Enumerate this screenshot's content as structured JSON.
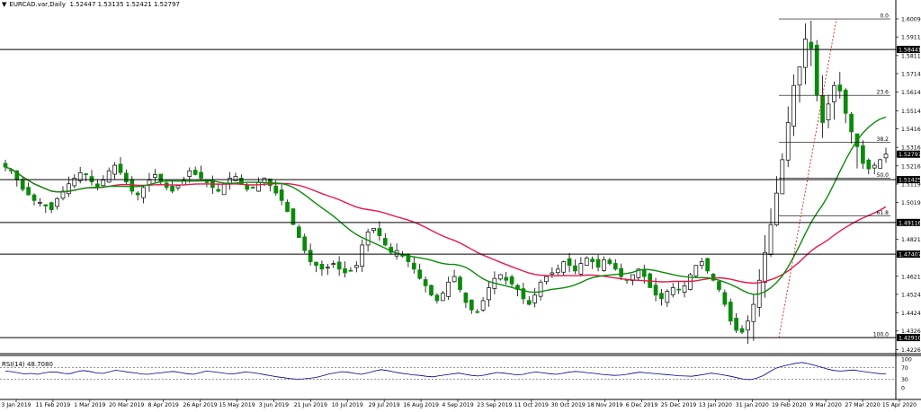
{
  "header": {
    "arrow_icon": "triangle-down-icon",
    "symbol": "EURCAD.var,Daily",
    "ohlc": "1.52447 1.53135 1.52421 1.52797"
  },
  "rsi": {
    "label": "RSI(14) 48.7080",
    "levels": [
      "100",
      "70",
      "30",
      "0"
    ],
    "values": [
      58,
      56,
      52,
      48,
      50,
      47,
      52,
      55,
      54,
      50,
      49,
      56,
      60,
      57,
      52,
      50,
      55,
      61,
      58,
      54,
      52,
      48,
      47,
      50,
      52,
      55,
      57,
      53,
      49,
      47,
      52,
      58,
      56,
      53,
      50,
      48,
      51,
      55,
      53,
      50,
      46,
      42,
      38,
      35,
      32,
      30,
      31,
      33,
      36,
      42,
      48,
      52,
      56,
      54,
      50,
      47,
      52,
      58,
      63,
      60,
      55,
      51,
      48,
      45,
      43,
      40,
      38,
      42,
      45,
      48,
      51,
      47,
      43,
      41,
      44,
      49,
      53,
      51,
      48,
      45,
      47,
      52,
      55,
      52,
      49,
      47,
      50,
      54,
      57,
      55,
      52,
      50,
      47,
      45,
      43,
      44,
      47,
      51,
      54,
      52,
      50,
      48,
      46,
      44,
      42,
      41,
      40,
      43,
      47,
      51,
      48,
      44,
      40,
      35,
      30,
      28,
      33,
      42,
      55,
      68,
      75,
      80,
      85,
      88,
      84,
      78,
      72,
      65,
      60,
      58,
      60,
      62,
      58,
      55,
      52,
      49,
      48.7
    ],
    "colors": {
      "line": "#00008b",
      "level_line": "#555555"
    }
  },
  "chart_data": [
    {
      "type": "candlestick",
      "symbol": "EURCAD.var",
      "timeframe": "Daily",
      "ohlc_last": {
        "open": 1.52447,
        "high": 1.53135,
        "low": 1.52421,
        "close": 1.52797
      },
      "y_ticks": [
        "1.60090",
        "1.59115",
        "1.58115",
        "1.57140",
        "1.56140",
        "1.55140",
        "1.54165",
        "1.53165",
        "1.52165",
        "1.51190",
        "1.50190",
        "1.48215",
        "1.46215",
        "1.45240",
        "1.44240",
        "1.43265",
        "1.42265"
      ],
      "y_tick_values": [
        1.6009,
        1.59115,
        1.58115,
        1.5714,
        1.5614,
        1.5514,
        1.54165,
        1.53165,
        1.52165,
        1.5119,
        1.5019,
        1.48215,
        1.46215,
        1.4524,
        1.4424,
        1.43265,
        1.42265
      ],
      "ylim": [
        1.4214,
        1.6072
      ],
      "price_marks": [
        {
          "label": "1.58441",
          "value": 1.58441
        },
        {
          "label": "1.52797",
          "value": 1.52797,
          "style": "current"
        },
        {
          "label": "1.51425",
          "value": 1.51425
        },
        {
          "label": "1.49116",
          "value": 1.49116
        },
        {
          "label": "1.47407",
          "value": 1.47407
        },
        {
          "label": "1.42910",
          "value": 1.4291
        }
      ],
      "fib_levels": [
        {
          "label": "0.0",
          "value": 1.6009
        },
        {
          "label": "23.6",
          "value": 1.5597
        },
        {
          "label": "38.2",
          "value": 1.5343
        },
        {
          "label": "50.0",
          "value": 1.515
        },
        {
          "label": "61.8",
          "value": 1.4946
        },
        {
          "label": "100.0",
          "value": 1.4291
        }
      ],
      "x_ticks": [
        "3 Jan 2019",
        "11 Feb 2019",
        "1 Mar 2019",
        "20 Mar 2019",
        "8 Apr 2019",
        "26 Apr 2019",
        "15 May 2019",
        "3 Jun 2019",
        "21 Jun 2019",
        "10 Jul 2019",
        "29 Jul 2019",
        "16 Aug 2019",
        "4 Sep 2019",
        "23 Sep 2019",
        "11 Oct 2019",
        "30 Oct 2019",
        "18 Nov 2019",
        "6 Dec 2019",
        "25 Dec 2019",
        "13 Jan 2020",
        "31 Jan 2020",
        "19 Feb 2020",
        "9 Mar 2020",
        "27 Mar 2020",
        "15 Apr 2020"
      ],
      "close_path": [
        1.521,
        1.519,
        1.514,
        1.509,
        1.506,
        1.503,
        1.502,
        1.5,
        1.498,
        1.504,
        1.508,
        1.512,
        1.515,
        1.518,
        1.517,
        1.513,
        1.51,
        1.514,
        1.519,
        1.522,
        1.518,
        1.513,
        1.508,
        1.506,
        1.51,
        1.514,
        1.517,
        1.513,
        1.51,
        1.508,
        1.511,
        1.514,
        1.519,
        1.517,
        1.515,
        1.513,
        1.51,
        1.508,
        1.512,
        1.515,
        1.516,
        1.512,
        1.509,
        1.51,
        1.513,
        1.515,
        1.511,
        1.507,
        1.503,
        1.497,
        1.49,
        1.483,
        1.476,
        1.47,
        1.468,
        1.466,
        1.467,
        1.469,
        1.466,
        1.464,
        1.465,
        1.468,
        1.479,
        1.486,
        1.488,
        1.484,
        1.479,
        1.475,
        1.476,
        1.473,
        1.47,
        1.466,
        1.461,
        1.457,
        1.452,
        1.449,
        1.453,
        1.459,
        1.462,
        1.455,
        1.448,
        1.444,
        1.443,
        1.449,
        1.456,
        1.461,
        1.463,
        1.46,
        1.458,
        1.455,
        1.45,
        1.447,
        1.452,
        1.459,
        1.462,
        1.464,
        1.466,
        1.47,
        1.468,
        1.465,
        1.469,
        1.472,
        1.47,
        1.467,
        1.471,
        1.469,
        1.466,
        1.462,
        1.46,
        1.463,
        1.466,
        1.462,
        1.456,
        1.452,
        1.45,
        1.454,
        1.456,
        1.455,
        1.457,
        1.463,
        1.468,
        1.47,
        1.465,
        1.46,
        1.455,
        1.447,
        1.438,
        1.433,
        1.432,
        1.438,
        1.447,
        1.46,
        1.475,
        1.49,
        1.507,
        1.525,
        1.545,
        1.565,
        1.575,
        1.59,
        1.585,
        1.56,
        1.545,
        1.555,
        1.565,
        1.562,
        1.55,
        1.54,
        1.532,
        1.523,
        1.52,
        1.522,
        1.525,
        1.528
      ],
      "indicators": [
        {
          "type": "moving-average",
          "color": "#e8174a"
        },
        {
          "type": "moving-average",
          "color": "#0a8a0a"
        }
      ],
      "colors": {
        "bull": "#000000",
        "bear": "#0a8a0a",
        "fib": "#e00000",
        "level_line": "#000000"
      }
    },
    {
      "type": "line",
      "indicator": "RSI(14)",
      "last": 48.708,
      "y_ticks": [
        "100",
        "70",
        "30",
        "0"
      ],
      "ylim": [
        0,
        100
      ]
    }
  ]
}
